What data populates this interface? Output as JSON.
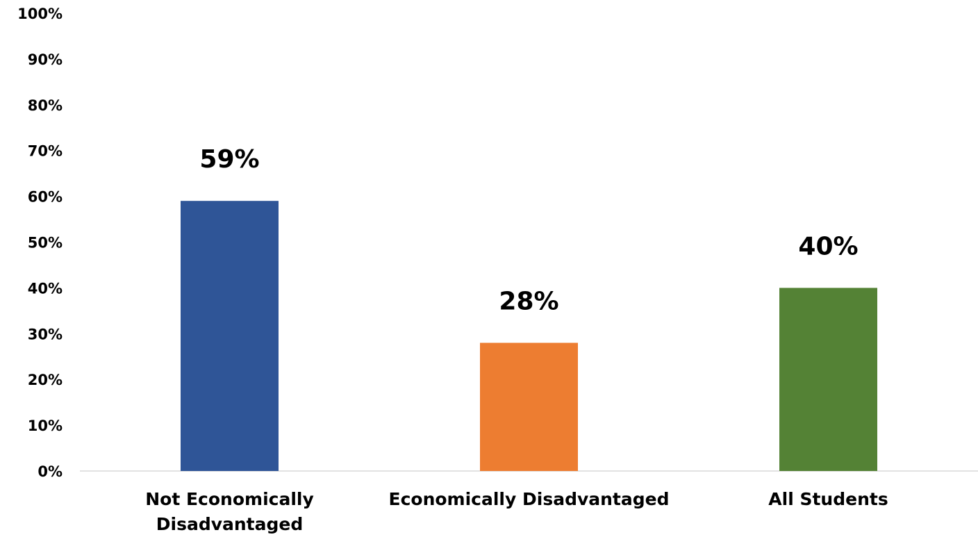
{
  "chart_data": {
    "type": "bar",
    "categories": [
      "Not Economically Disadvantaged",
      "Economically Disadvantaged",
      "All Students"
    ],
    "category_label_lines": [
      [
        "Not Economically",
        "Disadvantaged"
      ],
      [
        "Economically Disadvantaged"
      ],
      [
        "All Students"
      ]
    ],
    "values": [
      59,
      28,
      40
    ],
    "data_labels": [
      "59%",
      "28%",
      "40%"
    ],
    "colors": [
      "#2F5597",
      "#ED7D31",
      "#548235"
    ],
    "yticks": [
      0,
      10,
      20,
      30,
      40,
      50,
      60,
      70,
      80,
      90,
      100
    ],
    "ytick_labels": [
      "0%",
      "10%",
      "20%",
      "30%",
      "40%",
      "50%",
      "60%",
      "70%",
      "80%",
      "90%",
      "100%"
    ],
    "ylim": [
      0,
      100
    ],
    "title": "",
    "xlabel": "",
    "ylabel": "",
    "grid": false,
    "legend": "none",
    "axis_color": "#D9D9D9"
  }
}
